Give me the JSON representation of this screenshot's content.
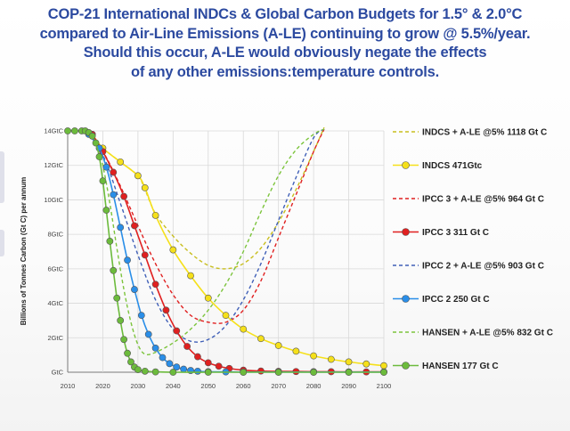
{
  "header": {
    "title_lines": [
      "COP-21 International INDCs & Global Carbon Budgets for 1.5° & 2.0°C",
      "compared to Air-Line Emissions (A-LE) continuing to grow @ 5.5%/year.",
      "Should this occur, A-LE would obviously negate the effects",
      "of any other emissions:temperature controls."
    ]
  },
  "chart_data": {
    "type": "line",
    "title": "COP-21 International INDCs & Global Carbon Budgets for 1.5° & 2.0°C compared to Air-Line Emissions (A-LE) continuing to grow @ 5.5%/year.",
    "xlabel": "",
    "ylabel": "Billions of Tonnes Carbon (Gt C) per annum",
    "xlim": [
      2010,
      2100
    ],
    "ylim": [
      0,
      14
    ],
    "x_ticks": [
      2010,
      2020,
      2030,
      2040,
      2050,
      2060,
      2070,
      2080,
      2090,
      2100
    ],
    "x_tick_labels": [
      "2010",
      "2020",
      "2030",
      "2040",
      "2050",
      "2060",
      "2070",
      "2080",
      "2090",
      "2100"
    ],
    "y_ticks": [
      0,
      2,
      4,
      6,
      8,
      10,
      12,
      14
    ],
    "y_tick_labels": [
      "GtC",
      "2GtC",
      "4GtC",
      "6GtC",
      "8GtC",
      "10GtC",
      "12GtC",
      "14GtC"
    ],
    "grid": true,
    "legend_position": "right",
    "series": [
      {
        "name": "INDCS + A-LE @5% 1118 Gt C",
        "color": "#c8be1e",
        "style": "dashed",
        "marker": "none",
        "x": [
          2010,
          2015,
          2020,
          2025,
          2030,
          2032,
          2035,
          2040,
          2045,
          2050,
          2055,
          2060,
          2065,
          2070,
          2075,
          2080,
          2083
        ],
        "y": [
          14.0,
          14.0,
          13.0,
          12.2,
          11.4,
          10.6,
          9.2,
          7.9,
          6.9,
          6.2,
          6.0,
          6.3,
          7.2,
          8.7,
          10.6,
          12.8,
          14.2
        ]
      },
      {
        "name": "INDCS 471Gtc",
        "color": "#f5e01a",
        "style": "solid",
        "marker": "circle",
        "x": [
          2017,
          2020,
          2025,
          2030,
          2032,
          2035,
          2040,
          2045,
          2050,
          2055,
          2060,
          2065,
          2070,
          2075,
          2080,
          2085,
          2090,
          2095,
          2100
        ],
        "y": [
          13.8,
          13.0,
          12.2,
          11.4,
          10.7,
          9.1,
          7.1,
          5.6,
          4.3,
          3.3,
          2.5,
          1.95,
          1.55,
          1.22,
          0.95,
          0.75,
          0.6,
          0.48,
          0.38
        ]
      },
      {
        "name": "IPCC 3 + A-LE @5% 964 Gt C",
        "color": "#e02020",
        "style": "dashed",
        "marker": "none",
        "x": [
          2010,
          2015,
          2020,
          2025,
          2030,
          2035,
          2040,
          2045,
          2050,
          2055,
          2060,
          2065,
          2070,
          2075,
          2080,
          2083
        ],
        "y": [
          14.0,
          14.0,
          12.8,
          10.8,
          8.5,
          6.3,
          4.5,
          3.3,
          2.9,
          2.9,
          3.6,
          5.3,
          7.8,
          10.3,
          12.8,
          14.1
        ]
      },
      {
        "name": "IPCC 3 311 Gt C",
        "color": "#e02020",
        "style": "solid",
        "marker": "circle",
        "x": [
          2017,
          2020,
          2023,
          2026,
          2029,
          2032,
          2035,
          2038,
          2041,
          2044,
          2047,
          2050,
          2053,
          2056,
          2060,
          2065,
          2070,
          2075,
          2080,
          2085,
          2090,
          2095,
          2100
        ],
        "y": [
          13.8,
          12.8,
          11.6,
          10.2,
          8.5,
          6.8,
          5.1,
          3.6,
          2.4,
          1.5,
          0.9,
          0.55,
          0.35,
          0.22,
          0.12,
          0.07,
          0.05,
          0.04,
          0.03,
          0.03,
          0.02,
          0.02,
          0.02
        ]
      },
      {
        "name": "IPCC 2 + A-LE @5% 903 Gt C",
        "color": "#4060b8",
        "style": "dashed",
        "marker": "none",
        "x": [
          2010,
          2015,
          2020,
          2025,
          2030,
          2035,
          2040,
          2045,
          2050,
          2055,
          2060,
          2065,
          2070,
          2075,
          2080,
          2083
        ],
        "y": [
          14.0,
          14.0,
          12.6,
          9.8,
          6.8,
          4.2,
          2.5,
          1.8,
          1.9,
          2.7,
          4.2,
          6.3,
          8.8,
          11.3,
          13.6,
          14.1
        ]
      },
      {
        "name": "IPCC 2 250 Gt C",
        "color": "#2a8ee8",
        "style": "solid",
        "marker": "circle",
        "x": [
          2016,
          2019,
          2021,
          2023,
          2025,
          2027,
          2029,
          2031,
          2033,
          2035,
          2037,
          2039,
          2041,
          2043,
          2045,
          2047,
          2050,
          2055,
          2060,
          2070,
          2080,
          2090,
          2100
        ],
        "y": [
          13.8,
          13.0,
          11.9,
          10.3,
          8.4,
          6.5,
          4.8,
          3.3,
          2.2,
          1.4,
          0.85,
          0.5,
          0.3,
          0.18,
          0.1,
          0.06,
          0.03,
          0.02,
          0.01,
          0.01,
          0.01,
          0.01,
          0.01
        ]
      },
      {
        "name": "HANSEN + A-LE @5% 832 Gt C",
        "color": "#7cc43c",
        "style": "dashed",
        "marker": "none",
        "x": [
          2010,
          2015,
          2018,
          2020,
          2022,
          2024,
          2026,
          2028,
          2030,
          2032,
          2035,
          2040,
          2045,
          2050,
          2055,
          2060,
          2065,
          2070,
          2075,
          2080,
          2083
        ],
        "y": [
          14.0,
          14.0,
          13.5,
          12.0,
          9.8,
          7.2,
          4.8,
          2.9,
          1.6,
          1.05,
          1.15,
          1.7,
          2.5,
          3.6,
          5.1,
          7.0,
          9.3,
          11.4,
          12.9,
          13.8,
          14.1
        ]
      },
      {
        "name": "HANSEN 177 Gt C",
        "color": "#6cbb3c",
        "style": "solid",
        "marker": "circle",
        "x": [
          2010,
          2012,
          2014,
          2015,
          2016,
          2017,
          2018,
          2019,
          2020,
          2021,
          2022,
          2023,
          2024,
          2025,
          2026,
          2027,
          2028,
          2029,
          2030,
          2032,
          2035,
          2040,
          2050,
          2060,
          2070,
          2080,
          2090,
          2100
        ],
        "y": [
          14.0,
          14.0,
          14.0,
          14.0,
          13.9,
          13.7,
          13.3,
          12.5,
          11.1,
          9.4,
          7.6,
          5.9,
          4.3,
          3.0,
          1.9,
          1.1,
          0.6,
          0.3,
          0.15,
          0.06,
          0.02,
          0.0,
          0.0,
          0.0,
          0.0,
          0.0,
          0.0,
          0.0
        ]
      }
    ]
  },
  "decor": {
    "grid_color": "#d9d9d9",
    "axis_color": "#7a7a7a",
    "title_color": "#2c4aa0",
    "marker_stroke": "#555555"
  }
}
